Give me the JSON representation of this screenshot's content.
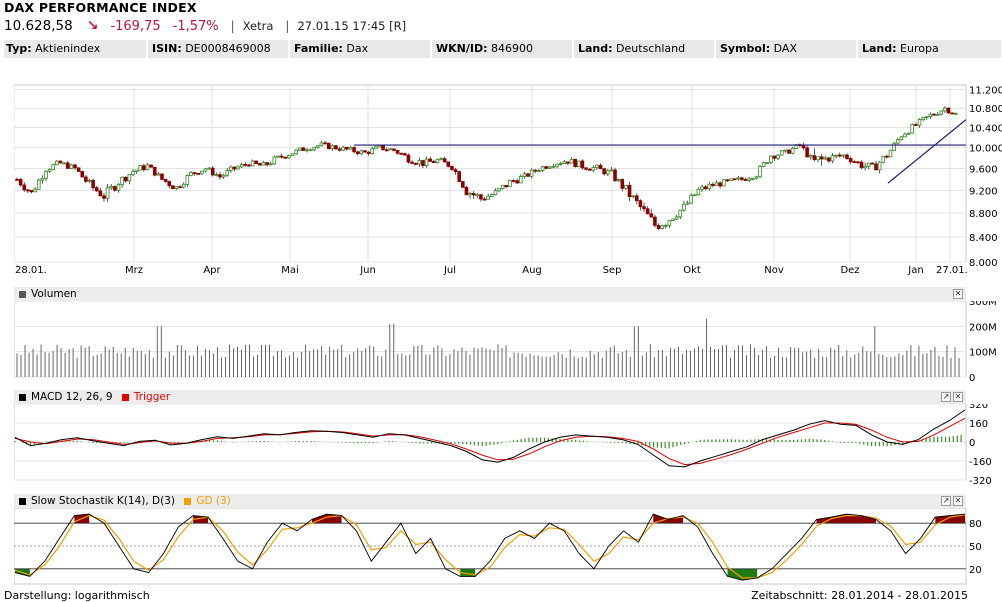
{
  "header": {
    "title": "DAX PERFORMANCE INDEX",
    "price": "10.628,58",
    "arrow_icon": "down-arrow-icon",
    "change": "-169,75",
    "change_pct": "-1,57%",
    "exchange": "Xetra",
    "datetime": "27.01.15 17:45 [R]"
  },
  "info_bar": [
    {
      "label": "Typ:",
      "value": "Aktienindex"
    },
    {
      "label": "ISIN:",
      "value": "DE0008469008"
    },
    {
      "label": "Familie:",
      "value": "Dax"
    },
    {
      "label": "WKN/ID:",
      "value": "846900"
    },
    {
      "label": "Land:",
      "value": "Deutschland"
    },
    {
      "label": "Symbol:",
      "value": "DAX"
    },
    {
      "label": "Land:",
      "value": "Europa"
    }
  ],
  "panels": {
    "volume_label": "Volumen",
    "macd_label": "MACD 12, 26, 9",
    "macd_trigger_label": "Trigger",
    "stoch_label": "Slow Stochastik K(14), D(3)",
    "stoch_gd_label": "GD (3)"
  },
  "colors": {
    "up": "#2e8b1e",
    "down": "#8b0000",
    "trigger": "#e00000",
    "gd": "#f0a000",
    "trendline": "#1a1a6e",
    "stoch_high_fill": "#8b0000",
    "stoch_low_fill": "#1d7a14"
  },
  "footer": {
    "display": "Darstellung: logarithmisch",
    "period": "Zeitabschnitt: 28.01.2014 - 28.01.2015"
  },
  "chart_data": [
    {
      "type": "candlestick",
      "scale": "log",
      "x_tick_labels": [
        "28.01.",
        "Mrz",
        "Apr",
        "Mai",
        "Jun",
        "Jul",
        "Aug",
        "Sep",
        "Okt",
        "Nov",
        "Dez",
        "Jan",
        "27.01."
      ],
      "y_tick_labels": [
        "11.200",
        "10.800",
        "10.400",
        "10.000",
        "9.600",
        "9.200",
        "8.800",
        "8.400",
        "8.000"
      ],
      "ylim": [
        8000,
        11300
      ],
      "grid": true,
      "horizontal_line": 10050,
      "weekly_close": [
        9400,
        9150,
        9600,
        9700,
        9600,
        9300,
        9100,
        9350,
        9550,
        9650,
        9400,
        9250,
        9500,
        9600,
        9450,
        9600,
        9700,
        9650,
        9800,
        9900,
        10000,
        10050,
        10000,
        9950,
        9900,
        10000,
        9950,
        9800,
        9700,
        9750,
        9650,
        9200,
        9050,
        9150,
        9350,
        9450,
        9600,
        9700,
        9750,
        9650,
        9600,
        9500,
        9200,
        8900,
        8600,
        8700,
        8900,
        9200,
        9300,
        9350,
        9400,
        9500,
        9850,
        9900,
        10050,
        9700,
        9800,
        9850,
        9700,
        9600,
        9850,
        10250,
        10450,
        10650,
        10800,
        10629
      ],
      "weekly_low": [
        9250,
        9050,
        9400,
        9550,
        9450,
        9150,
        8950,
        9150,
        9400,
        9500,
        9250,
        9150,
        9350,
        9450,
        9300,
        9450,
        9550,
        9500,
        9650,
        9750,
        9850,
        9900,
        9850,
        9800,
        9750,
        9850,
        9800,
        9600,
        9550,
        9550,
        9450,
        9000,
        8900,
        8950,
        9150,
        9300,
        9450,
        9550,
        9600,
        9500,
        9450,
        9300,
        9000,
        8700,
        8350,
        8500,
        8700,
        9000,
        9150,
        9200,
        9250,
        9350,
        9650,
        9750,
        9850,
        9200,
        9600,
        9700,
        9500,
        9400,
        9700,
        10100,
        10300,
        10500,
        10650,
        10550
      ],
      "weekly_high": [
        9600,
        9400,
        9700,
        9800,
        9750,
        9550,
        9350,
        9500,
        9700,
        9750,
        9600,
        9450,
        9600,
        9700,
        9600,
        9700,
        9800,
        9800,
        9900,
        10000,
        10100,
        10150,
        10100,
        10050,
        10000,
        10100,
        10050,
        9950,
        9850,
        9850,
        9800,
        9450,
        9200,
        9300,
        9450,
        9550,
        9700,
        9800,
        9900,
        9800,
        9750,
        9650,
        9450,
        9150,
        8900,
        8850,
        9050,
        9300,
        9400,
        9450,
        9500,
        9650,
        9950,
        10000,
        10150,
        10050,
        9950,
        9950,
        9900,
        9800,
        10000,
        10400,
        10600,
        10800,
        10900,
        10850
      ],
      "trend_support": {
        "from": {
          "index": 58,
          "value": 9330
        },
        "to": {
          "index": 65,
          "value": 10560
        }
      }
    },
    {
      "type": "bar",
      "title": "Volumen",
      "y_tick_labels": [
        "300M",
        "200M",
        "100M",
        "0"
      ],
      "ylim": [
        0,
        300
      ],
      "typical_value_millions": 100,
      "spikes_millions": [
        {
          "x": "Mrz",
          "value": 200
        },
        {
          "x": "Jun",
          "value": 210
        },
        {
          "x": "Sep",
          "value": 200
        },
        {
          "x": "Okt",
          "value": 230
        },
        {
          "x": "Dez",
          "value": 200
        }
      ]
    },
    {
      "type": "line",
      "title": "MACD 12, 26, 9",
      "y_tick_labels": [
        "320",
        "160",
        "0",
        "-160",
        "-320"
      ],
      "ylim": [
        -320,
        320
      ],
      "series": [
        {
          "name": "MACD 12, 26, 9",
          "values": [
            40,
            -30,
            -10,
            20,
            35,
            10,
            -10,
            -30,
            5,
            15,
            -25,
            -10,
            20,
            45,
            30,
            50,
            70,
            60,
            80,
            95,
            90,
            80,
            60,
            40,
            70,
            60,
            30,
            0,
            -30,
            -80,
            -150,
            -170,
            -130,
            -60,
            0,
            40,
            60,
            50,
            40,
            20,
            -20,
            -110,
            -200,
            -210,
            -160,
            -120,
            -80,
            -40,
            20,
            60,
            100,
            150,
            180,
            150,
            140,
            60,
            0,
            -20,
            20,
            110,
            180,
            270
          ]
        },
        {
          "name": "Trigger",
          "values": [
            30,
            0,
            -15,
            5,
            25,
            20,
            0,
            -20,
            -5,
            10,
            -10,
            -10,
            5,
            30,
            35,
            45,
            60,
            62,
            72,
            85,
            90,
            85,
            70,
            50,
            60,
            62,
            45,
            15,
            -15,
            -60,
            -110,
            -150,
            -145,
            -100,
            -40,
            10,
            40,
            48,
            45,
            30,
            5,
            -60,
            -140,
            -190,
            -180,
            -145,
            -105,
            -60,
            -10,
            40,
            80,
            120,
            160,
            160,
            148,
            100,
            40,
            0,
            5,
            60,
            130,
            200
          ]
        }
      ]
    },
    {
      "type": "line",
      "title": "Slow Stochastik K(14), D(3)",
      "y_tick_labels": [
        "80",
        "50",
        "20"
      ],
      "ylim": [
        0,
        100
      ],
      "series": [
        {
          "name": "Slow Stochastik K(14), D(3)",
          "values": [
            15,
            10,
            30,
            60,
            90,
            92,
            80,
            50,
            20,
            15,
            40,
            75,
            90,
            88,
            60,
            30,
            20,
            55,
            80,
            70,
            85,
            92,
            90,
            70,
            30,
            55,
            80,
            40,
            60,
            20,
            10,
            10,
            30,
            60,
            70,
            60,
            80,
            70,
            40,
            20,
            50,
            70,
            55,
            92,
            85,
            90,
            75,
            40,
            10,
            5,
            8,
            20,
            40,
            60,
            85,
            88,
            92,
            90,
            85,
            70,
            40,
            60,
            88,
            90,
            92
          ]
        },
        {
          "name": "GD (3)",
          "values": [
            18,
            12,
            25,
            50,
            82,
            90,
            84,
            60,
            30,
            18,
            32,
            62,
            85,
            88,
            70,
            42,
            25,
            45,
            72,
            74,
            80,
            88,
            90,
            78,
            45,
            48,
            70,
            52,
            55,
            32,
            15,
            12,
            22,
            48,
            65,
            63,
            74,
            72,
            52,
            30,
            40,
            62,
            58,
            80,
            86,
            88,
            80,
            55,
            22,
            8,
            8,
            15,
            32,
            52,
            76,
            86,
            90,
            90,
            87,
            76,
            52,
            55,
            78,
            88,
            91
          ]
        }
      ]
    }
  ]
}
